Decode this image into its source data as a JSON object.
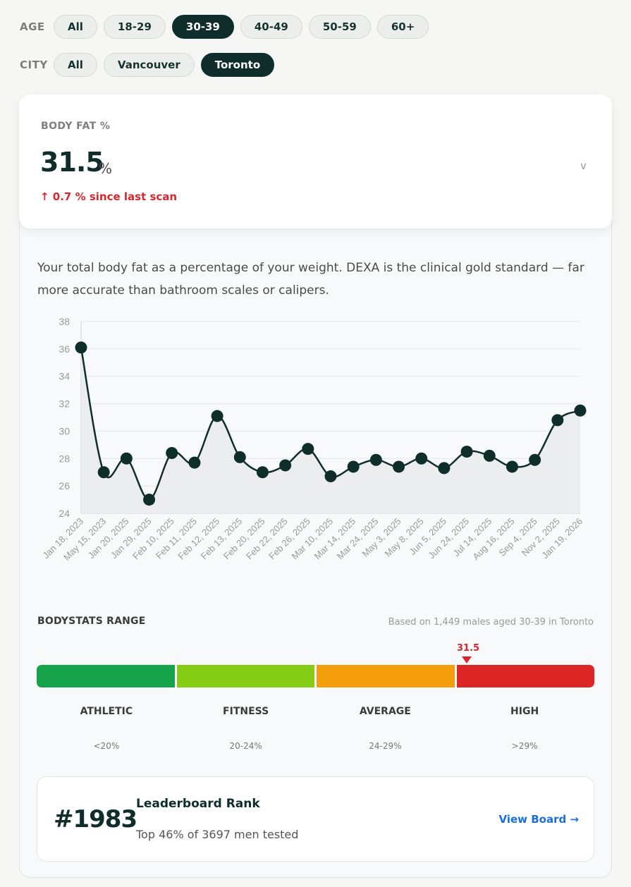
{
  "filters": {
    "age": {
      "label": "AGE",
      "options": [
        "All",
        "18-29",
        "30-39",
        "40-49",
        "50-59",
        "60+"
      ],
      "selected": "30-39"
    },
    "city": {
      "label": "CITY",
      "options": [
        "All",
        "Vancouver",
        "Toronto"
      ],
      "selected": "Toronto"
    }
  },
  "metric": {
    "label": "BODY FAT %",
    "value": "31.5",
    "unit": "%",
    "change": "↑ 0.7 % since last scan",
    "chevron": "v"
  },
  "description": "Your total body fat as a percentage of your weight. DEXA is the clinical gold standard — far more accurate than bathroom scales or calipers.",
  "chart_data": {
    "type": "line",
    "categories": [
      "Jan 18, 2023",
      "May 15, 2023",
      "Jan 20, 2025",
      "Jan 29, 2025",
      "Feb 10, 2025",
      "Feb 11, 2025",
      "Feb 12, 2025",
      "Feb 13, 2025",
      "Feb 20, 2025",
      "Feb 22, 2025",
      "Feb 26, 2025",
      "Mar 10, 2025",
      "Mar 14, 2025",
      "Mar 24, 2025",
      "May 3, 2025",
      "May 8, 2025",
      "Jun 5, 2025",
      "Jun 24, 2025",
      "Jul 14, 2025",
      "Aug 16, 2025",
      "Sep 4, 2025",
      "Nov 2, 2025",
      "Jan 19, 2026"
    ],
    "values": [
      36.1,
      27.0,
      28.0,
      25.0,
      28.4,
      27.7,
      31.1,
      28.1,
      27.0,
      27.5,
      28.7,
      26.7,
      27.4,
      27.9,
      27.4,
      28.0,
      27.3,
      28.5,
      28.2,
      27.4,
      27.9,
      30.8,
      31.5
    ],
    "yticks": [
      24,
      26,
      28,
      30,
      32,
      34,
      36,
      38
    ],
    "ylim": [
      24,
      38
    ],
    "grid": true,
    "colors": {
      "line": "#0f2e2b",
      "fill": "#ebedef",
      "grid": "#e4e7e7",
      "tick": "#9a9a9a"
    }
  },
  "range": {
    "title": "BODYSTATS RANGE",
    "note": "Based on 1,449 males aged 30-39 in Toronto",
    "marker_label": "31.5",
    "marker_value": 31.5,
    "segments": [
      {
        "name": "ATHLETIC",
        "range": "<20%",
        "color": "#17a34a"
      },
      {
        "name": "FITNESS",
        "range": "20-24%",
        "color": "#84cc16"
      },
      {
        "name": "AVERAGE",
        "range": "24-29%",
        "color": "#f59e0b"
      },
      {
        "name": "HIGH",
        "range": ">29%",
        "color": "#dc2626"
      }
    ]
  },
  "leaderboard": {
    "rank": "#1983",
    "title": "Leaderboard Rank",
    "subtitle": "Top 46% of 3697 men tested",
    "link": "View Board →"
  }
}
